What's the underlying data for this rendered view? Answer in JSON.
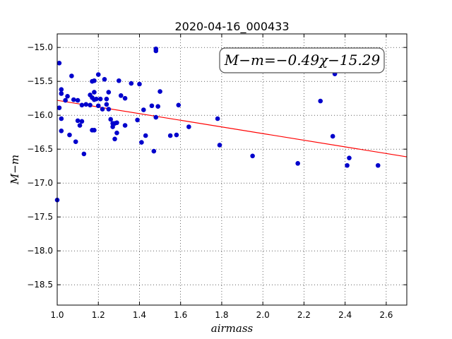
{
  "chart_data": {
    "type": "scatter",
    "title": "2020-04-16_000433",
    "xlabel": "airmass",
    "ylabel": "M−m",
    "xlim": [
      1.0,
      2.7
    ],
    "ylim": [
      -18.8,
      -14.8
    ],
    "x_ticks": [
      1.0,
      1.2,
      1.4,
      1.6,
      1.8,
      2.0,
      2.2,
      2.4,
      2.6
    ],
    "x_tick_labels": [
      "1.0",
      "1.2",
      "1.4",
      "1.6",
      "1.8",
      "2.0",
      "2.2",
      "2.4",
      "2.6"
    ],
    "y_ticks": [
      -15.0,
      -15.5,
      -16.0,
      -16.5,
      -17.0,
      -17.5,
      -18.0,
      -18.5
    ],
    "y_tick_labels": [
      "−15.0",
      "−15.5",
      "−16.0",
      "−16.5",
      "−17.0",
      "−17.5",
      "−18.0",
      "−18.5"
    ],
    "grid": true,
    "annotation": "M−m=−0.49χ−15.29",
    "fit": {
      "slope": -0.49,
      "intercept": -15.29,
      "color": "#ff0000"
    },
    "point_color": "#0000cc",
    "points": [
      [
        1.0,
        -17.25
      ],
      [
        1.01,
        -15.23
      ],
      [
        1.01,
        -15.89
      ],
      [
        1.02,
        -15.62
      ],
      [
        1.02,
        -15.68
      ],
      [
        1.02,
        -16.05
      ],
      [
        1.02,
        -16.23
      ],
      [
        1.04,
        -15.78
      ],
      [
        1.05,
        -15.72
      ],
      [
        1.06,
        -16.29
      ],
      [
        1.07,
        -15.42
      ],
      [
        1.08,
        -15.77
      ],
      [
        1.09,
        -16.39
      ],
      [
        1.1,
        -16.08
      ],
      [
        1.1,
        -15.78
      ],
      [
        1.11,
        -16.15
      ],
      [
        1.12,
        -15.85
      ],
      [
        1.12,
        -16.09
      ],
      [
        1.13,
        -16.57
      ],
      [
        1.14,
        -15.84
      ],
      [
        1.16,
        -15.7
      ],
      [
        1.16,
        -15.85
      ],
      [
        1.17,
        -15.5
      ],
      [
        1.17,
        -15.74
      ],
      [
        1.17,
        -16.22
      ],
      [
        1.18,
        -15.49
      ],
      [
        1.18,
        -15.66
      ],
      [
        1.18,
        -15.77
      ],
      [
        1.18,
        -16.22
      ],
      [
        1.19,
        -15.76
      ],
      [
        1.2,
        -15.4
      ],
      [
        1.2,
        -15.86
      ],
      [
        1.21,
        -15.76
      ],
      [
        1.22,
        -15.91
      ],
      [
        1.23,
        -15.47
      ],
      [
        1.24,
        -15.76
      ],
      [
        1.24,
        -15.84
      ],
      [
        1.25,
        -15.66
      ],
      [
        1.25,
        -15.91
      ],
      [
        1.26,
        -16.06
      ],
      [
        1.27,
        -16.12
      ],
      [
        1.27,
        -16.17
      ],
      [
        1.28,
        -16.12
      ],
      [
        1.28,
        -16.35
      ],
      [
        1.29,
        -16.26
      ],
      [
        1.29,
        -16.11
      ],
      [
        1.3,
        -15.49
      ],
      [
        1.31,
        -15.71
      ],
      [
        1.33,
        -15.75
      ],
      [
        1.33,
        -16.15
      ],
      [
        1.36,
        -15.53
      ],
      [
        1.39,
        -16.07
      ],
      [
        1.4,
        -15.54
      ],
      [
        1.41,
        -16.4
      ],
      [
        1.42,
        -15.92
      ],
      [
        1.43,
        -16.3
      ],
      [
        1.46,
        -15.86
      ],
      [
        1.47,
        -16.53
      ],
      [
        1.48,
        -15.02
      ],
      [
        1.48,
        -15.05
      ],
      [
        1.48,
        -16.03
      ],
      [
        1.49,
        -15.87
      ],
      [
        1.5,
        -15.65
      ],
      [
        1.55,
        -16.3
      ],
      [
        1.58,
        -16.29
      ],
      [
        1.59,
        -15.85
      ],
      [
        1.64,
        -16.17
      ],
      [
        1.78,
        -16.05
      ],
      [
        1.79,
        -16.44
      ],
      [
        1.95,
        -16.6
      ],
      [
        2.17,
        -16.71
      ],
      [
        2.28,
        -15.79
      ],
      [
        2.34,
        -16.31
      ],
      [
        2.35,
        -15.39
      ],
      [
        2.41,
        -16.74
      ],
      [
        2.42,
        -16.63
      ],
      [
        2.56,
        -16.74
      ]
    ]
  }
}
